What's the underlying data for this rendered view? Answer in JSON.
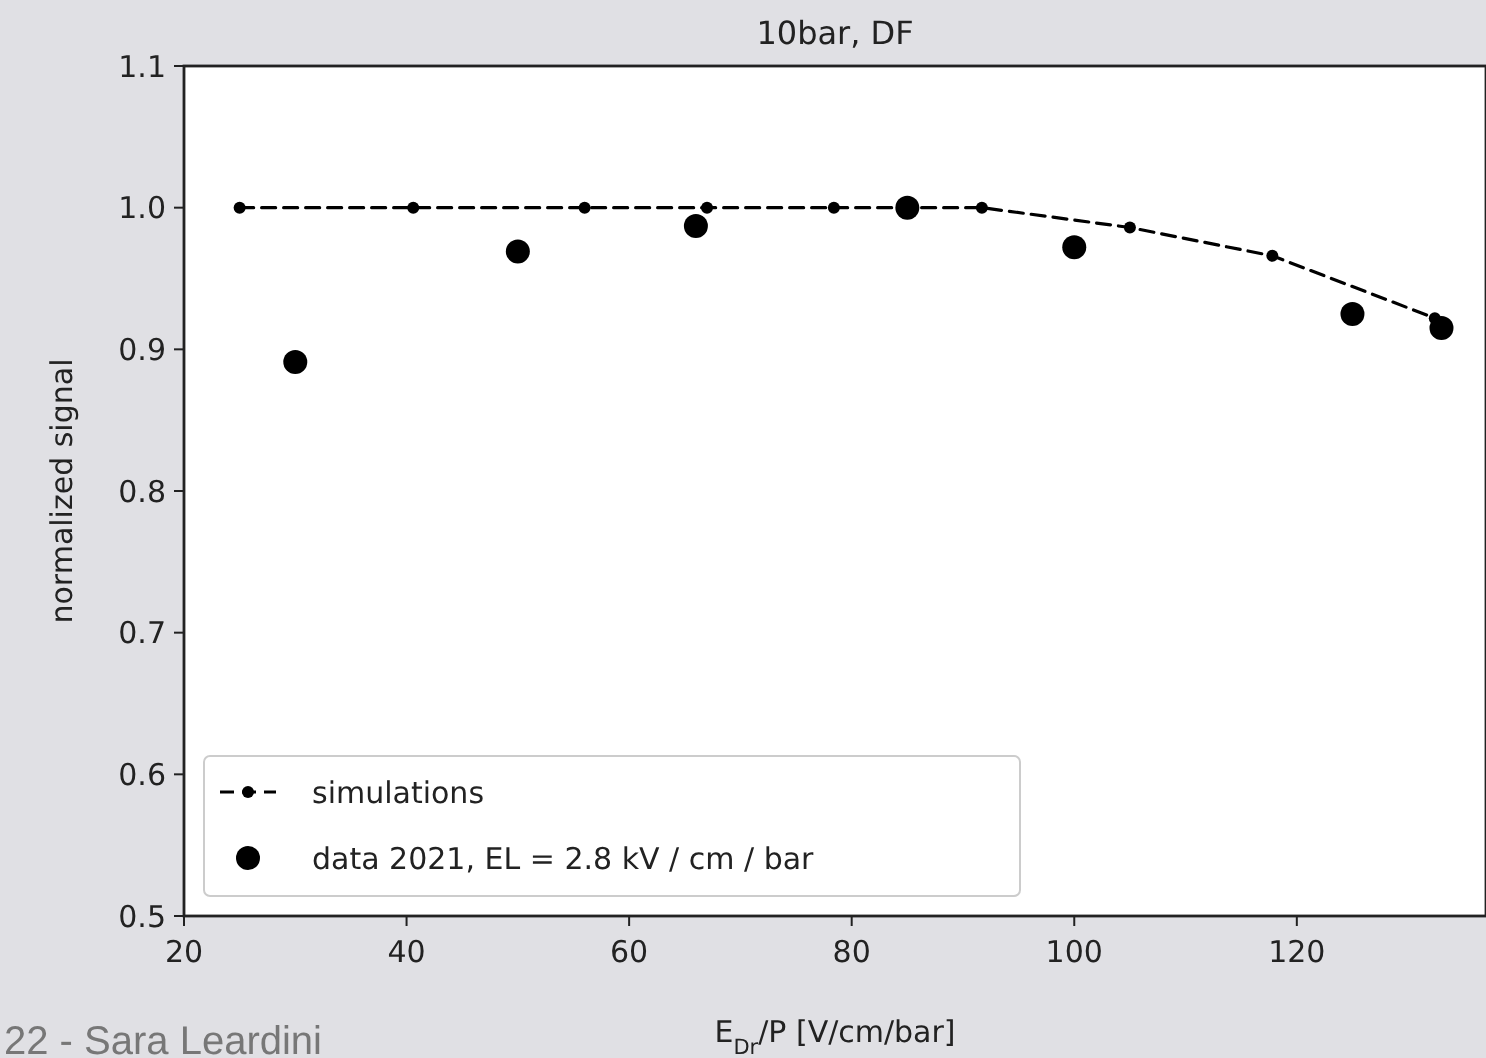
{
  "chart_data": {
    "type": "line",
    "title": "10bar, DF",
    "xlabel": "E$_{Dr}$/P [V/cm/bar]",
    "ylabel": "normalized signal",
    "xlim": [
      20,
      137
    ],
    "xticks": [
      20,
      40,
      60,
      80,
      100,
      120
    ],
    "ylim": [
      0.5,
      1.1
    ],
    "yticks": [
      {
        "value": 0.5,
        "label": "0.5"
      },
      {
        "value": 0.6,
        "label": "0.6"
      },
      {
        "value": 0.7,
        "label": "0.7"
      },
      {
        "value": 0.8,
        "label": "0.8"
      },
      {
        "value": 0.9,
        "label": "0.9"
      },
      {
        "value": 1.0,
        "label": "1.0"
      },
      {
        "value": 1.1,
        "label": "1.1"
      }
    ],
    "grid": false,
    "legend": "bottom left",
    "series": [
      {
        "name": "simulations",
        "color": "#000000",
        "line_style": "dashed",
        "marker": "circle",
        "x": [
          25,
          40.6,
          56,
          67,
          78.4,
          91.7,
          105,
          117.8,
          132.4
        ],
        "values": [
          1.0,
          1.0,
          1.0,
          1.0,
          1.0,
          1.0,
          0.986,
          0.966,
          0.922
        ]
      },
      {
        "name": "data 2021, EL = 2.8 kV / cm / bar",
        "type": "scatter",
        "color": "#000000",
        "marker": "circle",
        "x": [
          30,
          50,
          66,
          85,
          100,
          125,
          133
        ],
        "values": [
          0.891,
          0.969,
          0.987,
          1.0,
          0.972,
          0.925,
          0.915
        ]
      }
    ],
    "annotations": [
      "22 - Sara Leardini"
    ]
  }
}
